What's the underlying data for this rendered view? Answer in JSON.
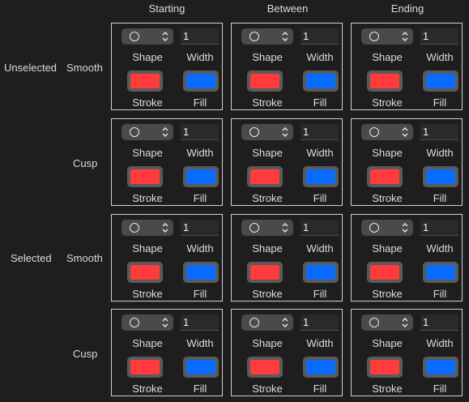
{
  "columns": [
    "Starting",
    "Between",
    "Ending"
  ],
  "groups": [
    {
      "label": "Unselected",
      "rows": [
        {
          "label": "Smooth"
        },
        {
          "label": "Cusp"
        }
      ]
    },
    {
      "label": "Selected",
      "rows": [
        {
          "label": "Smooth"
        },
        {
          "label": "Cusp"
        }
      ]
    }
  ],
  "cell": {
    "shape_value": "circle",
    "width_value": "1",
    "shape_label": "Shape",
    "width_label": "Width",
    "stroke_label": "Stroke",
    "fill_label": "Fill",
    "stroke_color": "#ff3b3b",
    "fill_color": "#0a6cff"
  },
  "colors": {
    "background": "#1e1e1e",
    "border": "#cfcfcf",
    "stroke": "#ff3b3b",
    "fill": "#0a6cff"
  }
}
